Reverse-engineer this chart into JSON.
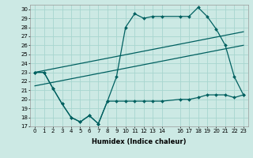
{
  "xlabel": "Humidex (Indice chaleur)",
  "background_color": "#cce9e4",
  "grid_color": "#a8d5cf",
  "line_color": "#006060",
  "xlim": [
    -0.5,
    23.5
  ],
  "ylim": [
    17,
    30.5
  ],
  "yticks": [
    17,
    18,
    19,
    20,
    21,
    22,
    23,
    24,
    25,
    26,
    27,
    28,
    29,
    30
  ],
  "xtick_positions": [
    0,
    1,
    2,
    3,
    4,
    5,
    6,
    7,
    8,
    9,
    10,
    11,
    12,
    13,
    14,
    16,
    17,
    18,
    19,
    20,
    21,
    22,
    23
  ],
  "xtick_labels": [
    "0",
    "1",
    "2",
    "3",
    "4",
    "5",
    "6",
    "7",
    "8",
    "9",
    "10",
    "11",
    "12",
    "13",
    "14",
    "16",
    "17",
    "18",
    "19",
    "20",
    "21",
    "22",
    "23"
  ],
  "line1_x": [
    0,
    1,
    2,
    3,
    4,
    5,
    6,
    7,
    8,
    9,
    10,
    11,
    12,
    13,
    14,
    16,
    17,
    18,
    19,
    20,
    21,
    22,
    23
  ],
  "line1_y": [
    23,
    23,
    21.2,
    19.5,
    18,
    17.5,
    18.2,
    17.3,
    19.8,
    22.5,
    28.0,
    29.5,
    29.0,
    29.2,
    29.2,
    29.2,
    29.2,
    30.2,
    29.2,
    27.8,
    26.0,
    22.5,
    20.5
  ],
  "line2_x": [
    0,
    1,
    2,
    3,
    4,
    5,
    6,
    7,
    8,
    9,
    10,
    11,
    12,
    13,
    14,
    16,
    17,
    18,
    19,
    20,
    21,
    22,
    23
  ],
  "line2_y": [
    23,
    23,
    21.2,
    19.5,
    18,
    17.5,
    18.2,
    17.3,
    19.8,
    19.8,
    19.8,
    19.8,
    19.8,
    19.8,
    19.8,
    20.0,
    20.0,
    20.2,
    20.5,
    20.5,
    20.5,
    20.2,
    20.5
  ],
  "line3_x": [
    0,
    23
  ],
  "line3_y": [
    23.0,
    27.5
  ],
  "line4_x": [
    0,
    23
  ],
  "line4_y": [
    21.5,
    26.0
  ]
}
